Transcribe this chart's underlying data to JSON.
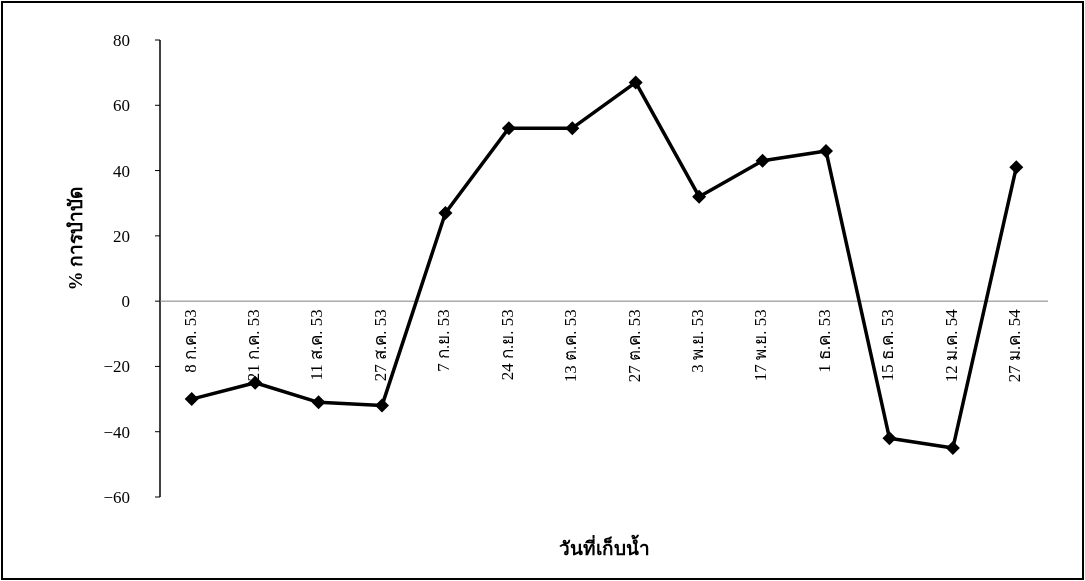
{
  "chart_data": {
    "type": "line",
    "xlabel": "วันที่เก็บน้ำ",
    "ylabel": "% การบำบัด",
    "categories": [
      "8 ก.ค. 53",
      "21 ก.ค. 53",
      "11 ส.ค. 53",
      "27 ส.ค. 53",
      "7 ก.ย. 53",
      "24 ก.ย. 53",
      "13 ต.ค. 53",
      "27 ต.ค. 53",
      "3 พ.ย. 53",
      "17 พ.ย. 53",
      "1 ธ.ค. 53",
      "15 ธ.ค. 53",
      "12 ม.ค. 54",
      "27 ม.ค. 54"
    ],
    "series": [
      {
        "color": "#000000",
        "values": [
          -30,
          -25,
          -31,
          -32,
          27,
          53,
          53,
          67,
          32,
          43,
          46,
          -42,
          -45,
          41
        ]
      }
    ],
    "ylim": [
      -60,
      80
    ],
    "yticks": [
      -60,
      -40,
      -20,
      0,
      20,
      40,
      60,
      80
    ],
    "marker": "diamond",
    "line_style": "solid"
  }
}
